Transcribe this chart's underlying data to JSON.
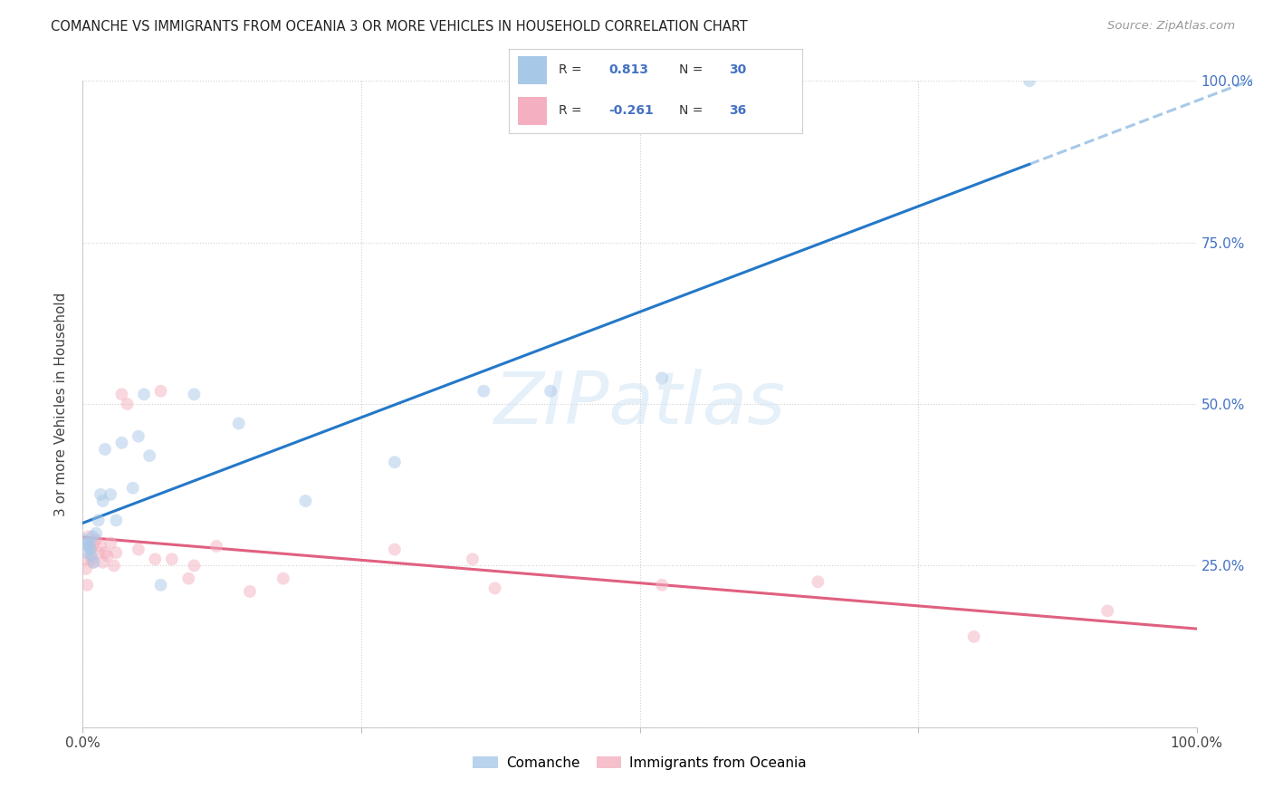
{
  "title": "COMANCHE VS IMMIGRANTS FROM OCEANIA 3 OR MORE VEHICLES IN HOUSEHOLD CORRELATION CHART",
  "source": "Source: ZipAtlas.com",
  "ylabel": "3 or more Vehicles in Household",
  "watermark": "ZIPatlas",
  "legend_label1": "Comanche",
  "legend_label2": "Immigrants from Oceania",
  "r1": "0.813",
  "n1": "30",
  "r2": "-0.261",
  "n2": "36",
  "blue_color": "#a8c8e8",
  "pink_color": "#f4b0c0",
  "line_blue": "#2478c8",
  "line_pink": "#e06080",
  "accent_color": "#4472c4",
  "comanche_x": [
    0.2,
    0.3,
    0.4,
    0.5,
    0.6,
    0.7,
    0.8,
    0.9,
    1.0,
    1.2,
    1.4,
    1.6,
    1.8,
    2.0,
    2.5,
    3.0,
    3.5,
    4.5,
    5.0,
    5.5,
    6.0,
    7.0,
    10.0,
    14.0,
    20.0,
    28.0,
    36.0,
    42.0,
    52.0,
    85.0
  ],
  "comanche_y": [
    29.0,
    28.5,
    27.0,
    28.0,
    28.5,
    27.5,
    26.5,
    29.5,
    25.5,
    30.0,
    32.0,
    36.0,
    35.0,
    43.0,
    36.0,
    32.0,
    44.0,
    37.0,
    45.0,
    51.5,
    42.0,
    22.0,
    51.5,
    47.0,
    35.0,
    41.0,
    52.0,
    52.0,
    54.0,
    100.0
  ],
  "oceania_x": [
    0.2,
    0.3,
    0.4,
    0.5,
    0.6,
    0.7,
    0.8,
    0.9,
    1.0,
    1.2,
    1.4,
    1.6,
    1.8,
    2.0,
    2.2,
    2.5,
    2.8,
    3.0,
    3.5,
    4.0,
    5.0,
    6.5,
    7.0,
    8.0,
    9.5,
    10.0,
    12.0,
    15.0,
    18.0,
    28.0,
    37.0,
    52.0,
    66.0,
    80.0,
    92.0,
    35.0
  ],
  "oceania_y": [
    26.0,
    24.5,
    22.0,
    29.5,
    28.0,
    27.5,
    26.0,
    25.5,
    28.5,
    29.0,
    27.0,
    28.0,
    25.5,
    27.0,
    26.5,
    28.5,
    25.0,
    27.0,
    51.5,
    50.0,
    27.5,
    26.0,
    52.0,
    26.0,
    23.0,
    25.0,
    28.0,
    21.0,
    23.0,
    27.5,
    21.5,
    22.0,
    22.5,
    14.0,
    18.0,
    26.0
  ],
  "xlim": [
    0.0,
    100.0
  ],
  "ylim": [
    0.0,
    100.0
  ],
  "xticks": [
    0.0,
    25.0,
    50.0,
    75.0,
    100.0
  ],
  "yticks": [
    0.0,
    25.0,
    50.0,
    75.0,
    100.0
  ],
  "grid_color": "#cccccc",
  "marker_size": 100,
  "marker_alpha": 0.5,
  "line_width": 2.2
}
